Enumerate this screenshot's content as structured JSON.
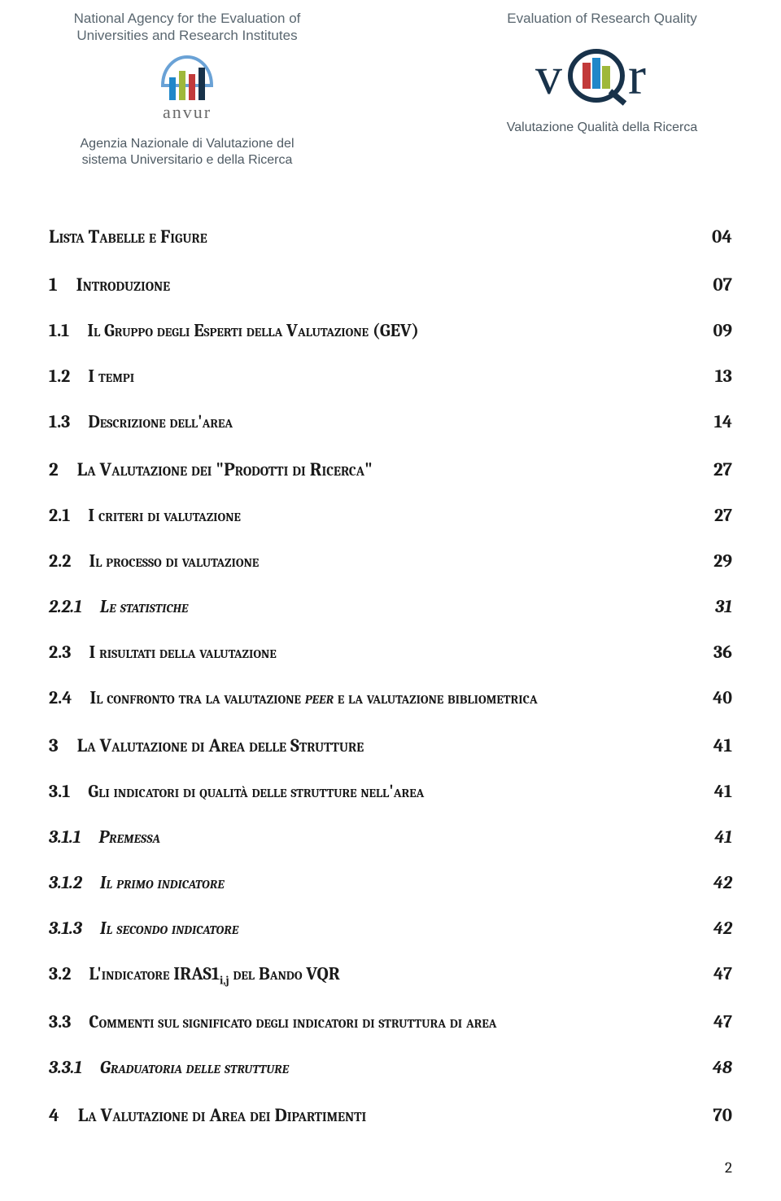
{
  "header": {
    "left": {
      "eng_line1": "National Agency for the Evaluation of",
      "eng_line2": "Universities and Research Institutes",
      "ita_line1": "Agenzia Nazionale di Valutazione del",
      "ita_line2": "sistema Universitario e della Ricerca",
      "logo_text": "anvur",
      "logo_colors": [
        "#1f87c9",
        "#9fb83a",
        "#c23a3a",
        "#18324a"
      ]
    },
    "right": {
      "eng": "Evaluation of Research Quality",
      "ita": "Valutazione Qualità della Ricerca",
      "logo_label": "vQr",
      "logo_v_color": "#18324a",
      "logo_q_bar_colors": [
        "#c23a3a",
        "#1f87c9",
        "#9fb83a"
      ],
      "logo_r_color": "#18324a"
    }
  },
  "toc": [
    {
      "level": 0,
      "num": "",
      "title": "Lista Tabelle  e Figure",
      "page": "04"
    },
    {
      "level": 0,
      "num": "1",
      "title": "Introduzione",
      "page": "07"
    },
    {
      "level": 1,
      "num": "1.1",
      "title": "Il Gruppo degli Esperti della Valutazione (GEV)",
      "page": "09"
    },
    {
      "level": 1,
      "num": "1.2",
      "title": "I tempi",
      "page": "13"
    },
    {
      "level": 1,
      "num": "1.3",
      "title": "Descrizione dell'area",
      "page": "14"
    },
    {
      "level": 0,
      "num": "2",
      "title": "La Valutazione dei \"Prodotti di Ricerca\"",
      "page": "27"
    },
    {
      "level": 1,
      "num": "2.1",
      "title": "I criteri di valutazione",
      "page": "27"
    },
    {
      "level": 1,
      "num": "2.2",
      "title": "Il processo di valutazione",
      "page": "29"
    },
    {
      "level": 2,
      "num": "2.2.1",
      "title": "Le statistiche",
      "page": "31"
    },
    {
      "level": 1,
      "num": "2.3",
      "title": "I  risultati della valutazione",
      "plain_prefix": "I ",
      "page": "36"
    },
    {
      "level": 1,
      "num": "2.4",
      "title_html": "Il confronto tra la valutazione <i>peer</i> e la valutazione bibliometrica",
      "page": "40"
    },
    {
      "level": 0,
      "num": "3",
      "title": "La Valutazione di Area delle Strutture",
      "page": "41"
    },
    {
      "level": 1,
      "num": "3.1",
      "title": "Gli indicatori di qualità delle strutture nell'area",
      "page": "41"
    },
    {
      "level": 2,
      "num": "3.1.1",
      "title": "Premessa",
      "page": "41"
    },
    {
      "level": 2,
      "num": "3.1.2",
      "title": "Il primo indicatore",
      "page": "42"
    },
    {
      "level": 2,
      "num": "3.1.3",
      "title": "Il secondo indicatore",
      "page": "42"
    },
    {
      "level": 1,
      "num": "3.2",
      "title_html": "L'indicatore IRAS1<span class='sub-label'>i,j</span> del Bando VQR",
      "page": "47"
    },
    {
      "level": 1,
      "num": "3.3",
      "title": "Commenti sul significato degli indicatori di struttura di area",
      "page": "47"
    },
    {
      "level": 2,
      "num": "3.3.1",
      "title": "Graduatoria delle strutture",
      "page": "48"
    },
    {
      "level": 0,
      "num": "4",
      "title": "La Valutazione di Area dei Dipartimenti",
      "page": "70"
    }
  ],
  "footer": {
    "page_number": "2"
  },
  "style": {
    "background": "#ffffff",
    "text_color": "#1a1a1a",
    "header_grey": "#5a6770",
    "font_family_body": "Cambria",
    "font_family_header": "Trebuchet MS"
  }
}
